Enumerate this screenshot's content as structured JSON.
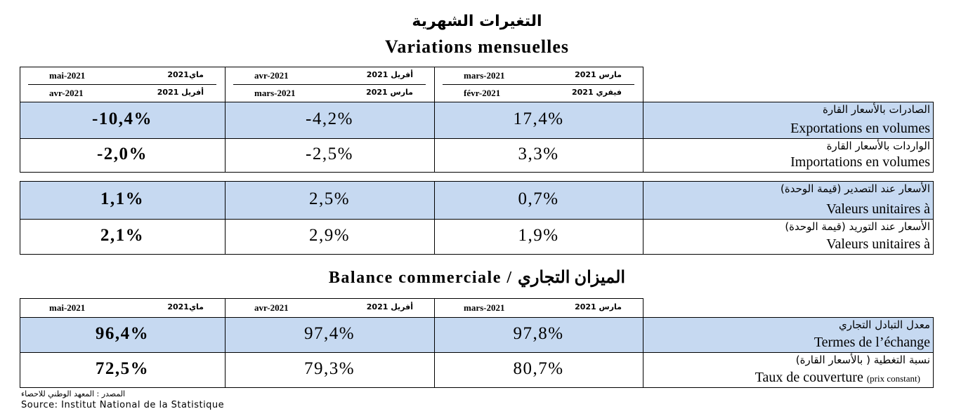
{
  "header": {
    "title_ar": "التغيرات الشهرية",
    "title_fr": "Variations mensuelles"
  },
  "table1": {
    "columns": [
      {
        "fr_top": "mai-2021",
        "ar_top": "ماي2021",
        "fr_bottom": "avr-2021",
        "ar_bottom": "أفريل 2021"
      },
      {
        "fr_top": "avr-2021",
        "ar_top": "أفريل 2021",
        "fr_bottom": "mars-2021",
        "ar_bottom": "مارس 2021"
      },
      {
        "fr_top": "mars-2021",
        "ar_top": "مارس 2021",
        "fr_bottom": "févr-2021",
        "ar_bottom": "فيفري 2021"
      }
    ],
    "rows": [
      {
        "label_ar": "الصادرات بالأسعار القارة",
        "label_fr": "Exportations en volumes",
        "values": [
          "-10,4%",
          "-4,2%",
          "17,4%"
        ]
      },
      {
        "label_ar": "الواردات بالأسعار القارة",
        "label_fr": "Importations en volumes",
        "values": [
          "-2,0%",
          "-2,5%",
          "3,3%"
        ]
      },
      {
        "label_ar": "الأسعار عند التصدير (قيمة الوحدة)",
        "label_fr": "Valeurs unitaires à",
        "values": [
          "1,1%",
          "2,5%",
          "0,7%"
        ]
      },
      {
        "label_ar": "الأسعار عند التوريد (قيمة الوحدة)",
        "label_fr": "Valeurs unitaires à",
        "values": [
          "2,1%",
          "2,9%",
          "1,9%"
        ]
      }
    ]
  },
  "section_title": "Balance commerciale / الميزان التجاري",
  "table2": {
    "columns": [
      {
        "fr": "mai-2021",
        "ar": "ماي2021"
      },
      {
        "fr": "avr-2021",
        "ar": "أفريل 2021"
      },
      {
        "fr": "mars-2021",
        "ar": "مارس 2021"
      }
    ],
    "rows": [
      {
        "label_ar": "معدل التبادل التجاري",
        "label_fr": "Termes de l’échange",
        "values": [
          "96,4%",
          "97,4%",
          "97,8%"
        ]
      },
      {
        "label_ar": "نسبة التغطية ( بالأسعار القارة)",
        "label_fr": "Taux de couverture",
        "label_fr_note": "(prix constant)",
        "values": [
          "72,5%",
          "79,3%",
          "80,7%"
        ]
      }
    ]
  },
  "source_ar": "المصدر : المعهد الوطني للاحصاء",
  "source_fr": "Source: Institut National de la Statistique"
}
